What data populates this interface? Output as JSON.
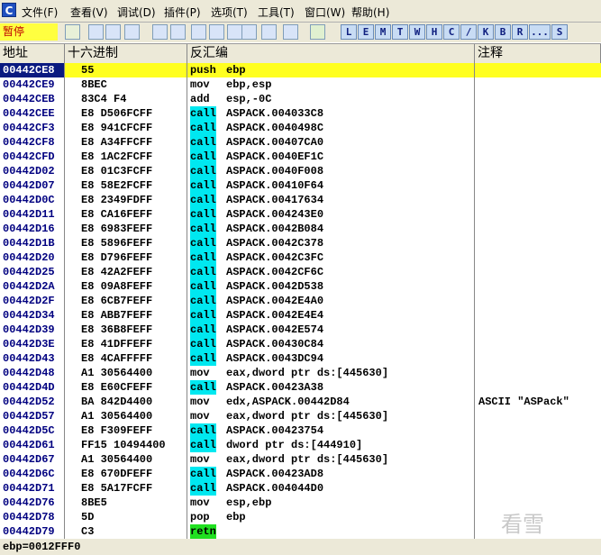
{
  "window_icon": "C",
  "menu": [
    "文件(F)",
    "查看(V)",
    "调试(D)",
    "插件(P)",
    "选项(T)",
    "工具(T)",
    "窗口(W)",
    "帮助(H)"
  ],
  "status_label": "暂停",
  "toolbar_letters": [
    "L",
    "E",
    "M",
    "T",
    "W",
    "H",
    "C",
    "/",
    "K",
    "B",
    "R",
    "...",
    "S"
  ],
  "columns": [
    "地址",
    "十六进制",
    "反汇编",
    "注释"
  ],
  "selected_row": 0,
  "mnemonic_highlight": {
    "call": "#00e8f0",
    "retn": "#20e020"
  },
  "rows": [
    {
      "addr": "00442CE8",
      "hex": "55",
      "op": "push",
      "args": "ebp"
    },
    {
      "addr": "00442CE9",
      "hex": "8BEC",
      "op": "mov",
      "args": "ebp,esp"
    },
    {
      "addr": "00442CEB",
      "hex": "83C4 F4",
      "op": "add",
      "args": "esp,-0C"
    },
    {
      "addr": "00442CEE",
      "hex": "E8 D506FCFF",
      "op": "call",
      "args": "ASPACK.004033C8"
    },
    {
      "addr": "00442CF3",
      "hex": "E8 941CFCFF",
      "op": "call",
      "args": "ASPACK.0040498C"
    },
    {
      "addr": "00442CF8",
      "hex": "E8 A34FFCFF",
      "op": "call",
      "args": "ASPACK.00407CA0"
    },
    {
      "addr": "00442CFD",
      "hex": "E8 1AC2FCFF",
      "op": "call",
      "args": "ASPACK.0040EF1C"
    },
    {
      "addr": "00442D02",
      "hex": "E8 01C3FCFF",
      "op": "call",
      "args": "ASPACK.0040F008"
    },
    {
      "addr": "00442D07",
      "hex": "E8 58E2FCFF",
      "op": "call",
      "args": "ASPACK.00410F64"
    },
    {
      "addr": "00442D0C",
      "hex": "E8 2349FDFF",
      "op": "call",
      "args": "ASPACK.00417634"
    },
    {
      "addr": "00442D11",
      "hex": "E8 CA16FEFF",
      "op": "call",
      "args": "ASPACK.004243E0"
    },
    {
      "addr": "00442D16",
      "hex": "E8 6983FEFF",
      "op": "call",
      "args": "ASPACK.0042B084"
    },
    {
      "addr": "00442D1B",
      "hex": "E8 5896FEFF",
      "op": "call",
      "args": "ASPACK.0042C378"
    },
    {
      "addr": "00442D20",
      "hex": "E8 D796FEFF",
      "op": "call",
      "args": "ASPACK.0042C3FC"
    },
    {
      "addr": "00442D25",
      "hex": "E8 42A2FEFF",
      "op": "call",
      "args": "ASPACK.0042CF6C"
    },
    {
      "addr": "00442D2A",
      "hex": "E8 09A8FEFF",
      "op": "call",
      "args": "ASPACK.0042D538"
    },
    {
      "addr": "00442D2F",
      "hex": "E8 6CB7FEFF",
      "op": "call",
      "args": "ASPACK.0042E4A0"
    },
    {
      "addr": "00442D34",
      "hex": "E8 ABB7FEFF",
      "op": "call",
      "args": "ASPACK.0042E4E4"
    },
    {
      "addr": "00442D39",
      "hex": "E8 36B8FEFF",
      "op": "call",
      "args": "ASPACK.0042E574"
    },
    {
      "addr": "00442D3E",
      "hex": "E8 41DFFEFF",
      "op": "call",
      "args": "ASPACK.00430C84"
    },
    {
      "addr": "00442D43",
      "hex": "E8 4CAFFFFF",
      "op": "call",
      "args": "ASPACK.0043DC94"
    },
    {
      "addr": "00442D48",
      "hex": "A1 30564400",
      "op": "mov",
      "args": "eax,dword ptr ds:[445630]"
    },
    {
      "addr": "00442D4D",
      "hex": "E8 E60CFEFF",
      "op": "call",
      "args": "ASPACK.00423A38"
    },
    {
      "addr": "00442D52",
      "hex": "BA 842D4400",
      "op": "mov",
      "args": "edx,ASPACK.00442D84",
      "comment": "ASCII \"ASPack\""
    },
    {
      "addr": "00442D57",
      "hex": "A1 30564400",
      "op": "mov",
      "args": "eax,dword ptr ds:[445630]"
    },
    {
      "addr": "00442D5C",
      "hex": "E8 F309FEFF",
      "op": "call",
      "args": "ASPACK.00423754"
    },
    {
      "addr": "00442D61",
      "hex": "FF15 10494400",
      "op": "call",
      "args": "dword ptr ds:[444910]"
    },
    {
      "addr": "00442D67",
      "hex": "A1 30564400",
      "op": "mov",
      "args": "eax,dword ptr ds:[445630]"
    },
    {
      "addr": "00442D6C",
      "hex": "E8 670DFEFF",
      "op": "call",
      "args": "ASPACK.00423AD8"
    },
    {
      "addr": "00442D71",
      "hex": "E8 5A17FCFF",
      "op": "call",
      "args": "ASPACK.004044D0"
    },
    {
      "addr": "00442D76",
      "hex": "8BE5",
      "op": "mov",
      "args": "esp,ebp"
    },
    {
      "addr": "00442D78",
      "hex": "5D",
      "op": "pop",
      "args": "ebp"
    },
    {
      "addr": "00442D79",
      "hex": "C3",
      "op": "retn"
    }
  ],
  "status_bar": "ebp=0012FFF0",
  "watermark": "看雪"
}
